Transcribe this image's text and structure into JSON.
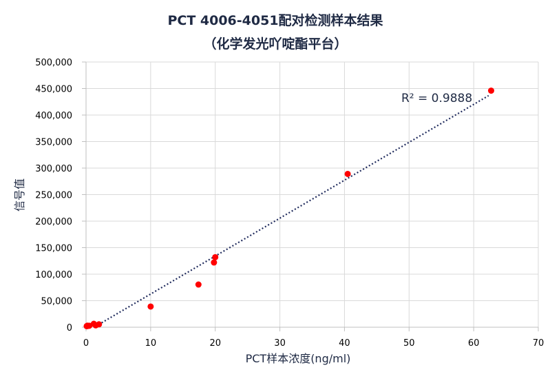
{
  "chart_data": {
    "type": "scatter",
    "title_line1": "PCT 4006-4051配对检测样本结果",
    "title_line2": "（化学发光吖啶酯平台）",
    "xlabel": "PCT样本浓度(ng/ml)",
    "ylabel": "信号值",
    "xlim": [
      0,
      70
    ],
    "ylim": [
      0,
      500000
    ],
    "x_ticks": [
      0,
      10,
      20,
      30,
      40,
      50,
      60,
      70
    ],
    "y_ticks": [
      0,
      50000,
      100000,
      150000,
      200000,
      250000,
      300000,
      350000,
      400000,
      450000,
      500000
    ],
    "x_tick_labels": [
      "0",
      "10",
      "20",
      "30",
      "40",
      "50",
      "60",
      "70"
    ],
    "y_tick_labels": [
      "0",
      "50,000",
      "100,000",
      "150,000",
      "200,000",
      "250,000",
      "300,000",
      "350,000",
      "400,000",
      "450,000",
      "500,000"
    ],
    "grid": "vertical and horizontal",
    "series": [
      {
        "color": "#ff0000",
        "points": [
          {
            "x": 0.1,
            "y": 2000
          },
          {
            "x": 0.2,
            "y": 3000
          },
          {
            "x": 0.3,
            "y": 2500
          },
          {
            "x": 0.5,
            "y": 2800
          },
          {
            "x": 1.2,
            "y": 6500
          },
          {
            "x": 1.5,
            "y": 3500
          },
          {
            "x": 2.0,
            "y": 5500
          },
          {
            "x": 10.0,
            "y": 39000
          },
          {
            "x": 17.4,
            "y": 80500
          },
          {
            "x": 19.8,
            "y": 122000
          },
          {
            "x": 20.0,
            "y": 132000
          },
          {
            "x": 40.5,
            "y": 289000
          },
          {
            "x": 62.7,
            "y": 446000
          }
        ]
      }
    ],
    "trendline": {
      "type": "linear",
      "style": "dotted",
      "color": "#1f2a5c",
      "x_range": [
        1.5,
        62.3
      ],
      "slope": 7150,
      "intercept": -8900,
      "r2_label": "R² = 0.9888"
    }
  }
}
